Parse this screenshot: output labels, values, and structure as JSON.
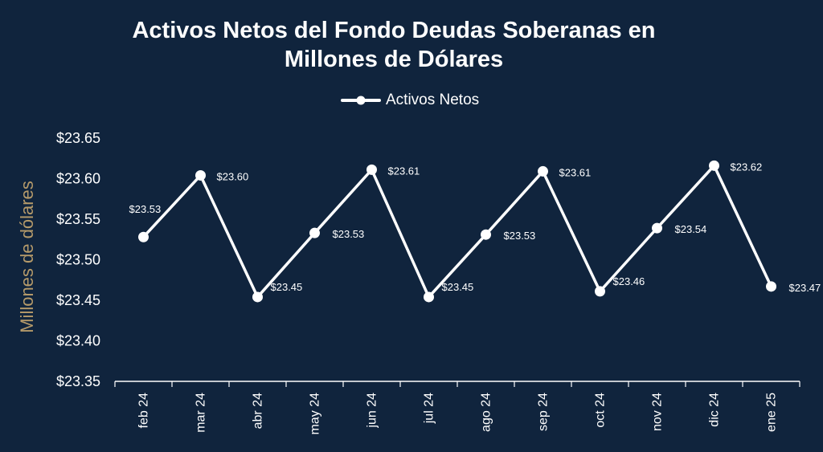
{
  "chart_data": {
    "type": "line",
    "title": "Activos Netos del Fondo Deudas Soberanas en Millones de Dólares",
    "ylabel": "Millones de dólares",
    "xlabel": "",
    "legend": {
      "placement": "top",
      "entries": [
        "Activos Netos"
      ]
    },
    "grid": false,
    "ylim": [
      23.35,
      23.65
    ],
    "yticks": [
      "$23.35",
      "$23.40",
      "$23.45",
      "$23.50",
      "$23.55",
      "$23.60",
      "$23.65"
    ],
    "categories": [
      "feb 24",
      "mar 24",
      "abr 24",
      "may 24",
      "jun 24",
      "jul 24",
      "ago 24",
      "sep 24",
      "oct 24",
      "nov 24",
      "dic 24",
      "ene 25"
    ],
    "series": [
      {
        "name": "Activos Netos",
        "color": "#ffffff",
        "values": [
          23.528,
          23.604,
          23.454,
          23.533,
          23.611,
          23.454,
          23.531,
          23.609,
          23.461,
          23.539,
          23.616,
          23.467
        ],
        "labels": [
          "$23.53",
          "$23.60",
          "$23.45",
          "$23.53",
          "$23.61",
          "$23.45",
          "$23.53",
          "$23.61",
          "$23.46",
          "$23.54",
          "$23.62",
          "$23.47"
        ]
      }
    ]
  },
  "colors": {
    "background": "#10243d",
    "ylabel": "#b59a6a",
    "line": "#ffffff"
  }
}
